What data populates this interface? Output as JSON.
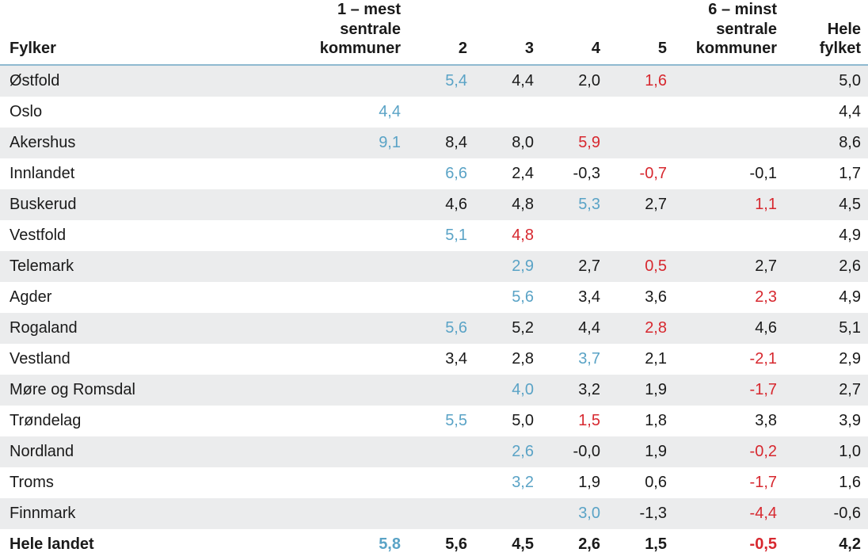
{
  "headers": {
    "name": "Fylker",
    "c1": "1 – mest sentrale kommuner",
    "c2": "2",
    "c3": "3",
    "c4": "4",
    "c5": "5",
    "c6": "6 – minst sentrale kommuner",
    "c7": "Hele fylket"
  },
  "colors": {
    "highest": "#5aa3c6",
    "lowest": "#d7282f",
    "shade": "#ebeced",
    "rule": "#8fb9d0"
  },
  "rows": [
    {
      "name": "Østfold",
      "c1": "",
      "c2": "5,4",
      "c3": "4,4",
      "c4": "2,0",
      "c5": "1,6",
      "c6": "",
      "c7": "5,0"
    },
    {
      "name": "Oslo",
      "c1": "4,4",
      "c2": "",
      "c3": "",
      "c4": "",
      "c5": "",
      "c6": "",
      "c7": "4,4"
    },
    {
      "name": "Akershus",
      "c1": "9,1",
      "c2": "8,4",
      "c3": "8,0",
      "c4": "5,9",
      "c5": "",
      "c6": "",
      "c7": "8,6"
    },
    {
      "name": "Innlandet",
      "c1": "",
      "c2": "6,6",
      "c3": "2,4",
      "c4": "-0,3",
      "c5": "-0,7",
      "c6": "-0,1",
      "c7": "1,7"
    },
    {
      "name": "Buskerud",
      "c1": "",
      "c2": "4,6",
      "c3": "4,8",
      "c4": "5,3",
      "c5": "2,7",
      "c6": "1,1",
      "c7": "4,5"
    },
    {
      "name": "Vestfold",
      "c1": "",
      "c2": "5,1",
      "c3": "4,8",
      "c4": "",
      "c5": "",
      "c6": "",
      "c7": "4,9"
    },
    {
      "name": "Telemark",
      "c1": "",
      "c2": "",
      "c3": "2,9",
      "c4": "2,7",
      "c5": "0,5",
      "c6": "2,7",
      "c7": "2,6"
    },
    {
      "name": "Agder",
      "c1": "",
      "c2": "",
      "c3": "5,6",
      "c4": "3,4",
      "c5": "3,6",
      "c6": "2,3",
      "c7": "4,9"
    },
    {
      "name": "Rogaland",
      "c1": "",
      "c2": "5,6",
      "c3": "5,2",
      "c4": "4,4",
      "c5": "2,8",
      "c6": "4,6",
      "c7": "5,1"
    },
    {
      "name": "Vestland",
      "c1": "",
      "c2": "3,4",
      "c3": "2,8",
      "c4": "3,7",
      "c5": "2,1",
      "c6": "-2,1",
      "c7": "2,9"
    },
    {
      "name": "Møre og Romsdal",
      "c1": "",
      "c2": "",
      "c3": "4,0",
      "c4": "3,2",
      "c5": "1,9",
      "c6": "-1,7",
      "c7": "2,7"
    },
    {
      "name": "Trøndelag",
      "c1": "",
      "c2": "5,5",
      "c3": "5,0",
      "c4": "1,5",
      "c5": "1,8",
      "c6": "3,8",
      "c7": "3,9"
    },
    {
      "name": "Nordland",
      "c1": "",
      "c2": "",
      "c3": "2,6",
      "c4": "-0,0",
      "c5": "1,9",
      "c6": "-0,2",
      "c7": "1,0"
    },
    {
      "name": "Troms",
      "c1": "",
      "c2": "",
      "c3": "3,2",
      "c4": "1,9",
      "c5": "0,6",
      "c6": "-1,7",
      "c7": "1,6"
    },
    {
      "name": "Finnmark",
      "c1": "",
      "c2": "",
      "c3": "",
      "c4": "3,0",
      "c5": "-1,3",
      "c6": "-4,4",
      "c7": "-0,6"
    },
    {
      "name": "Hele landet",
      "c1": "5,8",
      "c2": "5,6",
      "c3": "4,5",
      "c4": "2,6",
      "c5": "1,5",
      "c6": "-0,5",
      "c7": "4,2"
    }
  ]
}
